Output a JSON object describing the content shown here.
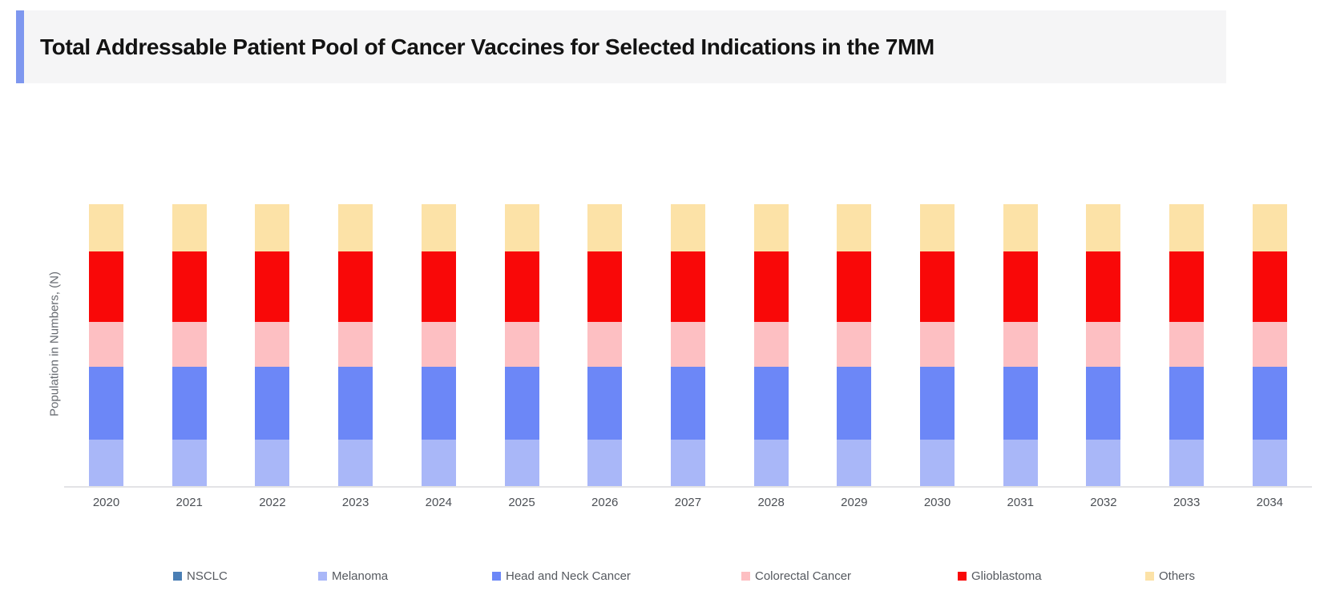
{
  "header": {
    "title": "Total Addressable Patient Pool of Cancer Vaccines for Selected Indications in the 7MM"
  },
  "accent_color": "#7e97ef",
  "title_band_bg": "#f5f5f6",
  "chart_data": {
    "type": "bar",
    "stacked": true,
    "title": "Total Addressable Patient Pool of Cancer Vaccines for Selected Indications in the 7MM",
    "xlabel": "",
    "ylabel": "Population in Numbers, (N)",
    "grid": false,
    "legend_position": "bottom",
    "y_axis_numeric_labels_visible": false,
    "values_unit": "percent of total bar height (y-axis shows no numeric ticks; bars are visually equal each year)",
    "categories": [
      "2020",
      "2021",
      "2022",
      "2023",
      "2024",
      "2025",
      "2026",
      "2027",
      "2028",
      "2029",
      "2030",
      "2031",
      "2032",
      "2033",
      "2034"
    ],
    "series": [
      {
        "name": "NSCLC",
        "color": "#4a7eb4",
        "values": [
          0,
          0,
          0,
          0,
          0,
          0,
          0,
          0,
          0,
          0,
          0,
          0,
          0,
          0,
          0
        ]
      },
      {
        "name": "Melanoma",
        "color": "#a9b7f8",
        "values": [
          16.6,
          16.6,
          16.6,
          16.6,
          16.6,
          16.6,
          16.6,
          16.6,
          16.6,
          16.6,
          16.6,
          16.6,
          16.6,
          16.6,
          16.6
        ]
      },
      {
        "name": "Head and Neck Cancer",
        "color": "#6c87f7",
        "values": [
          25.6,
          25.6,
          25.6,
          25.6,
          25.6,
          25.6,
          25.6,
          25.6,
          25.6,
          25.6,
          25.6,
          25.6,
          25.6,
          25.6,
          25.6
        ]
      },
      {
        "name": "Colorectal Cancer",
        "color": "#fdbfc2",
        "values": [
          16.0,
          16.0,
          16.0,
          16.0,
          16.0,
          16.0,
          16.0,
          16.0,
          16.0,
          16.0,
          16.0,
          16.0,
          16.0,
          16.0,
          16.0
        ]
      },
      {
        "name": "Glioblastoma",
        "color": "#f90808",
        "values": [
          25.0,
          25.0,
          25.0,
          25.0,
          25.0,
          25.0,
          25.0,
          25.0,
          25.0,
          25.0,
          25.0,
          25.0,
          25.0,
          25.0,
          25.0
        ]
      },
      {
        "name": "Others",
        "color": "#fce2a7",
        "values": [
          16.8,
          16.8,
          16.8,
          16.8,
          16.8,
          16.8,
          16.8,
          16.8,
          16.8,
          16.8,
          16.8,
          16.8,
          16.8,
          16.8,
          16.8
        ]
      }
    ]
  }
}
